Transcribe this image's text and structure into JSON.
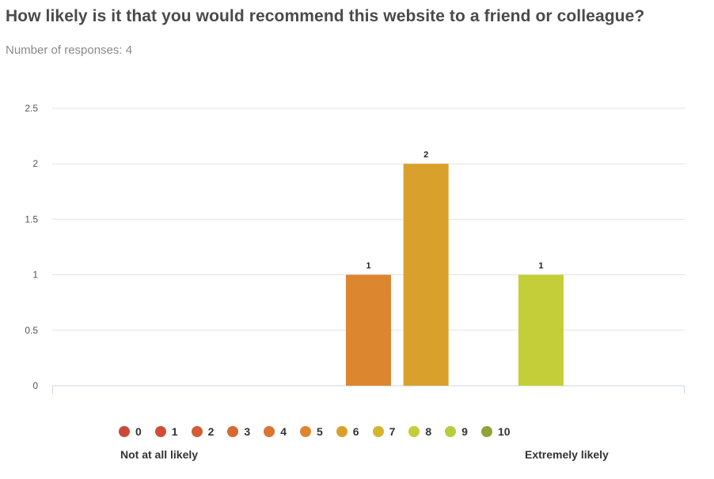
{
  "question": "How likely is it that you would recommend this website to a friend or colleague?",
  "responses_text": "Number of responses: 4",
  "scale_labels": {
    "low": "Not at all likely",
    "high": "Extremely likely"
  },
  "colors": [
    "#cc4a3b",
    "#cf4f36",
    "#d25c35",
    "#d66832",
    "#da7531",
    "#dd8630",
    "#d9a12c",
    "#d6b42d",
    "#c3ce39",
    "#b5cd3c",
    "#8fa33a"
  ],
  "chart_data": {
    "type": "bar",
    "title": "How likely is it that you would recommend this website to a friend or colleague?",
    "categories": [
      "0",
      "1",
      "2",
      "3",
      "4",
      "5",
      "6",
      "7",
      "8",
      "9",
      "10"
    ],
    "values": [
      0,
      0,
      0,
      0,
      0,
      1,
      2,
      0,
      1,
      0,
      0
    ],
    "ylim": [
      0,
      2.5
    ],
    "yticks": [
      "0",
      "0.5",
      "1",
      "1.5",
      "2",
      "2.5"
    ],
    "grid": true,
    "legend": "bottom"
  }
}
